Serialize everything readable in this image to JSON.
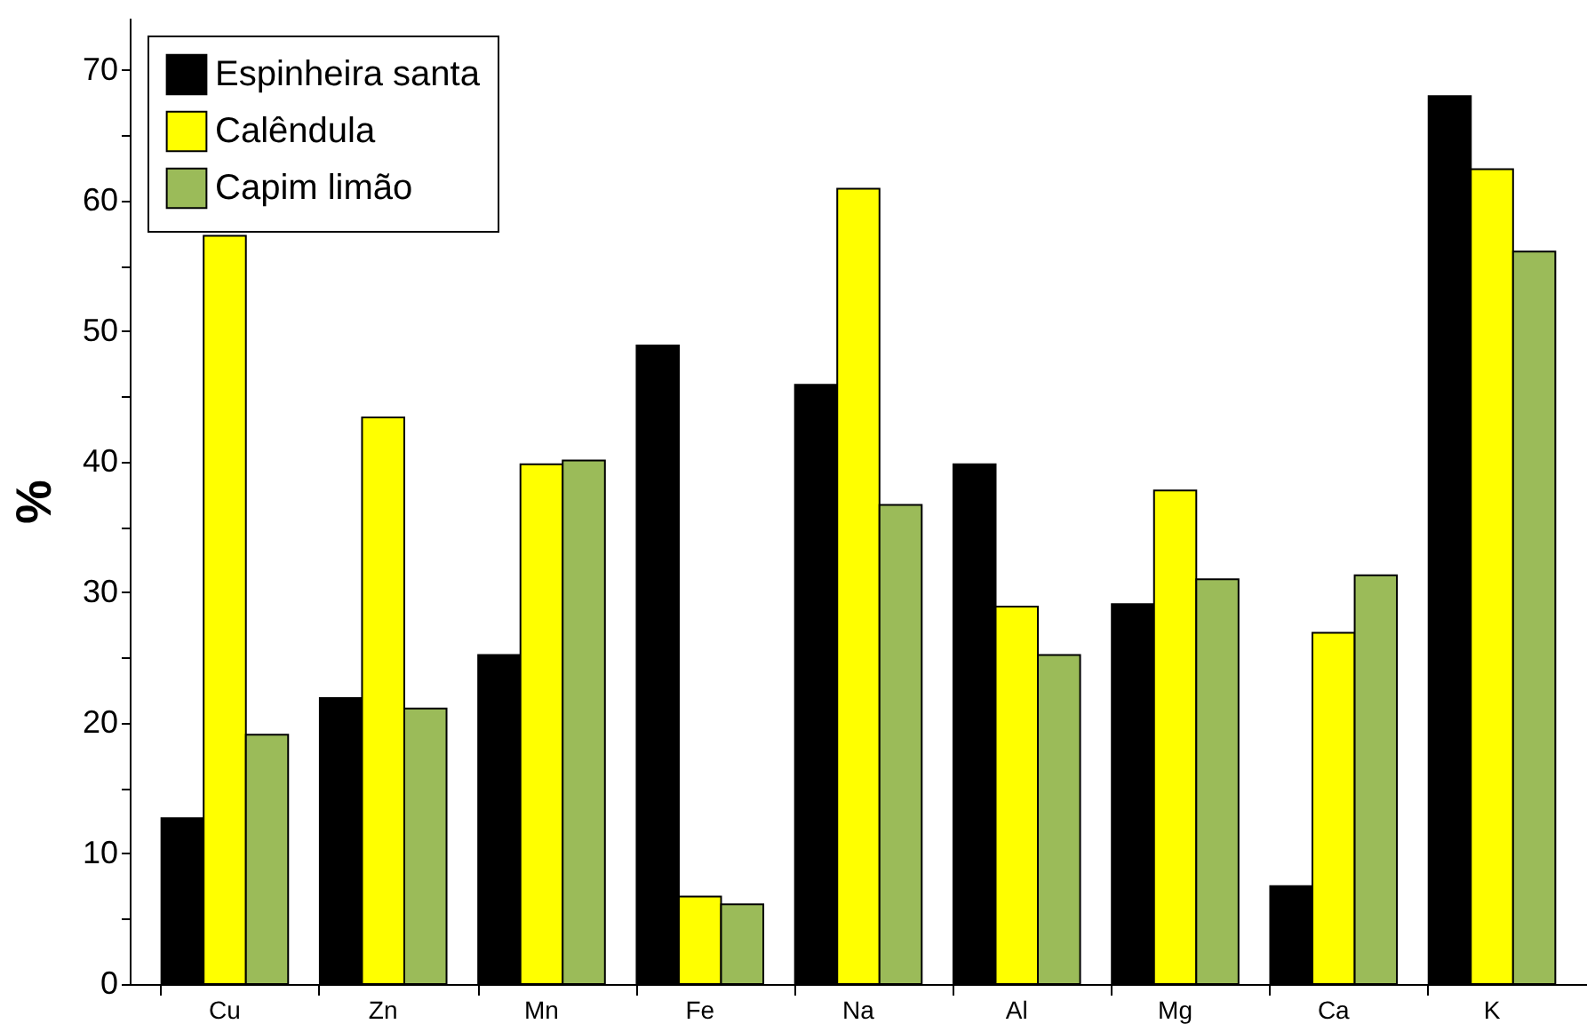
{
  "chart_data": {
    "type": "bar",
    "ylabel": "%",
    "categories": [
      "Cu",
      "Zn",
      "Mn",
      "Fe",
      "Na",
      "Al",
      "Mg",
      "Ca",
      "K"
    ],
    "series": [
      {
        "name": "Espinheira santa",
        "color": "#000000",
        "values": [
          12.7,
          21.9,
          25.2,
          48.9,
          45.9,
          39.8,
          29.1,
          7.5,
          68.0
        ]
      },
      {
        "name": "Calêndula",
        "color": "#ffff00",
        "values": [
          57.3,
          43.4,
          39.8,
          6.7,
          60.9,
          28.9,
          37.8,
          26.9,
          62.4
        ]
      },
      {
        "name": "Capim limão",
        "color": "#9bbb59",
        "values": [
          19.1,
          21.1,
          40.1,
          6.1,
          36.7,
          25.2,
          31.0,
          31.3,
          56.1
        ]
      }
    ],
    "ylim": [
      0,
      74
    ],
    "yticks": [
      0,
      {
        "value": 5,
        "label": null
      },
      10,
      {
        "value": 15,
        "label": null
      },
      20,
      {
        "value": 25,
        "label": null
      },
      30,
      {
        "value": 35,
        "label": null
      },
      40,
      {
        "value": 45,
        "label": null
      },
      50,
      {
        "value": 55,
        "label": null
      },
      60,
      {
        "value": 65,
        "label": null
      },
      70
    ],
    "grid": false,
    "legend": "top left"
  }
}
